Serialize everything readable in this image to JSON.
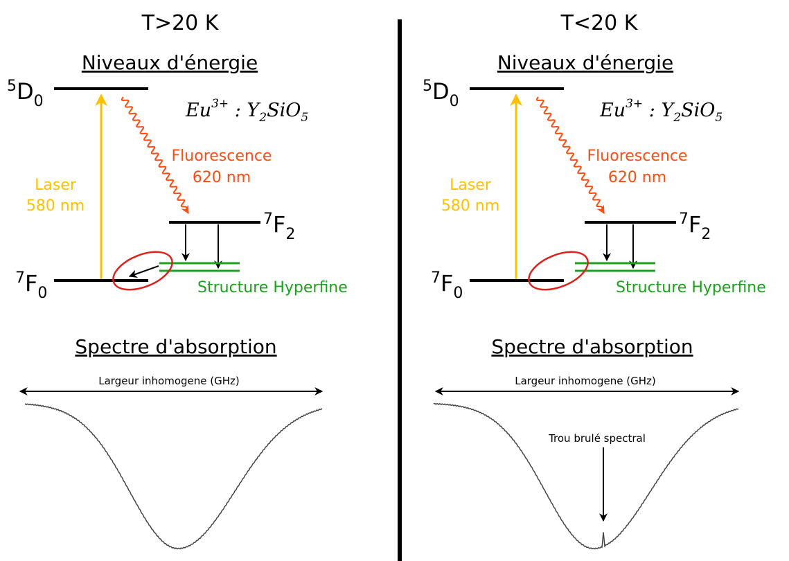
{
  "panels": [
    {
      "temperature": "T>20 K",
      "energy_title": "Niveaux d'énergie",
      "levels": {
        "d0_sup": "5",
        "d0_main": "D",
        "d0_sub": "0",
        "f2_sup": "7",
        "f2_main": "F",
        "f2_sub": "2",
        "f0_sup": "7",
        "f0_main": "F",
        "f0_sub": "0"
      },
      "crystal": {
        "eu": "Eu",
        "eu_sup": "3+",
        "sep": " : Y",
        "y_sub": "2",
        "si": "SiO",
        "o_sub": "5"
      },
      "laser_line1": "Laser",
      "laser_line2": "580 nm",
      "fluo_line1": "Fluorescence",
      "fluo_line2": "620 nm",
      "hyperfine_label": "Structure Hyperfine",
      "spectrum_title": "Spectre d'absorption",
      "width_label": "Largeur inhomogene (GHz)",
      "hole_label": ""
    },
    {
      "temperature": "T<20 K",
      "energy_title": "Niveaux d'énergie",
      "levels": {
        "d0_sup": "5",
        "d0_main": "D",
        "d0_sub": "0",
        "f2_sup": "7",
        "f2_main": "F",
        "f2_sub": "2",
        "f0_sup": "7",
        "f0_main": "F",
        "f0_sub": "0"
      },
      "crystal": {
        "eu": "Eu",
        "eu_sup": "3+",
        "sep": " : Y",
        "y_sub": "2",
        "si": "SiO",
        "o_sub": "5"
      },
      "laser_line1": "Laser",
      "laser_line2": "580 nm",
      "fluo_line1": "Fluorescence",
      "fluo_line2": "620 nm",
      "hyperfine_label": "Structure Hyperfine",
      "spectrum_title": "Spectre d'absorption",
      "width_label": "Largeur inhomogene (GHz)",
      "hole_label": "Trou brulé spectral"
    }
  ],
  "colors": {
    "laser": "#ffc000",
    "fluorescence": "#ff4a10",
    "hyperfine": "#1aa31a",
    "ellipse": "#e0201a",
    "line": "#000000",
    "spectrum": "#444444"
  }
}
